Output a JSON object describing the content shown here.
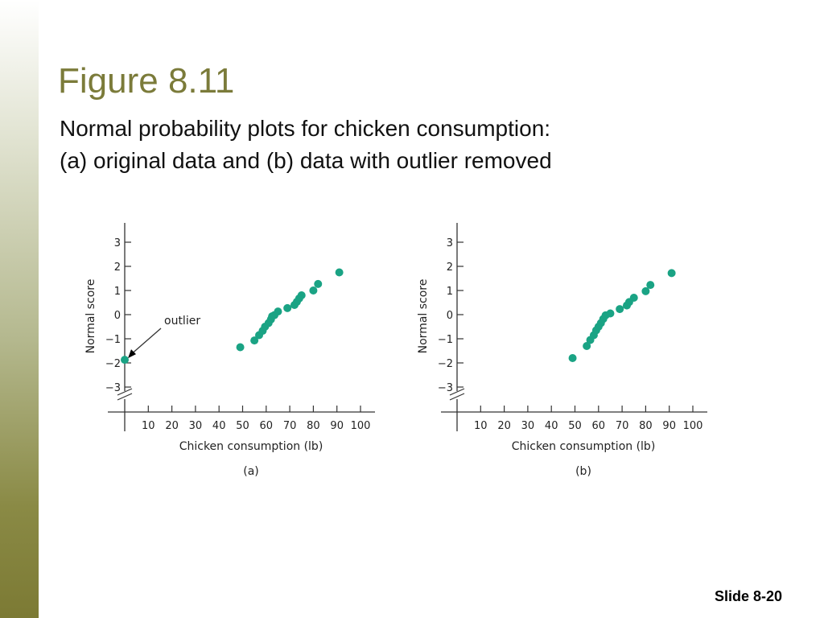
{
  "slide": {
    "title": "Figure 8.11",
    "subtitle_line1": "Normal probability plots for chicken consumption:",
    "subtitle_line2": "(a) original data and (b) data with outlier removed",
    "footer": "Slide 8-20"
  },
  "colors": {
    "accent": "#7b7b3a",
    "point": "#1aa384",
    "axis": "#333333"
  },
  "chart_data": [
    {
      "type": "scatter",
      "panel_label": "(a)",
      "xlabel": "Chicken consumption (lb)",
      "ylabel": "Normal score",
      "xlim": [
        0,
        100
      ],
      "ylim": [
        -3,
        3
      ],
      "x_ticks": [
        10,
        20,
        30,
        40,
        50,
        60,
        70,
        80,
        90,
        100
      ],
      "y_ticks": [
        3,
        2,
        1,
        0,
        -1,
        -2,
        -3
      ],
      "y_tick_labels": [
        "3",
        "2",
        "1",
        "0",
        "−1",
        "−2",
        "−3"
      ],
      "axis_break": true,
      "annotation": {
        "text": "outlier",
        "points_to": {
          "x": 0,
          "y": -1.87
        }
      },
      "points": [
        {
          "x": 0,
          "y": -1.87
        },
        {
          "x": 49,
          "y": -1.35
        },
        {
          "x": 55,
          "y": -1.07
        },
        {
          "x": 57,
          "y": -0.85
        },
        {
          "x": 58.5,
          "y": -0.67
        },
        {
          "x": 59.5,
          "y": -0.5
        },
        {
          "x": 61,
          "y": -0.35
        },
        {
          "x": 62,
          "y": -0.2
        },
        {
          "x": 62.5,
          "y": -0.07
        },
        {
          "x": 63.5,
          "y": -0.02
        },
        {
          "x": 65,
          "y": 0.13
        },
        {
          "x": 69,
          "y": 0.27
        },
        {
          "x": 72,
          "y": 0.4
        },
        {
          "x": 73,
          "y": 0.53
        },
        {
          "x": 74,
          "y": 0.67
        },
        {
          "x": 75,
          "y": 0.8
        },
        {
          "x": 80,
          "y": 1.0
        },
        {
          "x": 82,
          "y": 1.27
        },
        {
          "x": 91,
          "y": 1.75
        }
      ]
    },
    {
      "type": "scatter",
      "panel_label": "(b)",
      "xlabel": "Chicken consumption (lb)",
      "ylabel": "Normal score",
      "xlim": [
        0,
        100
      ],
      "ylim": [
        -3,
        3
      ],
      "x_ticks": [
        10,
        20,
        30,
        40,
        50,
        60,
        70,
        80,
        90,
        100
      ],
      "y_ticks": [
        3,
        2,
        1,
        0,
        -1,
        -2,
        -3
      ],
      "y_tick_labels": [
        "3",
        "2",
        "1",
        "0",
        "−1",
        "−2",
        "−3"
      ],
      "axis_break": true,
      "points": [
        {
          "x": 49,
          "y": -1.8
        },
        {
          "x": 55,
          "y": -1.3
        },
        {
          "x": 56.5,
          "y": -1.05
        },
        {
          "x": 58,
          "y": -0.85
        },
        {
          "x": 59,
          "y": -0.65
        },
        {
          "x": 60,
          "y": -0.5
        },
        {
          "x": 61,
          "y": -0.35
        },
        {
          "x": 62,
          "y": -0.18
        },
        {
          "x": 63,
          "y": -0.03
        },
        {
          "x": 65,
          "y": 0.05
        },
        {
          "x": 69,
          "y": 0.23
        },
        {
          "x": 72,
          "y": 0.38
        },
        {
          "x": 73,
          "y": 0.52
        },
        {
          "x": 75,
          "y": 0.7
        },
        {
          "x": 80,
          "y": 0.97
        },
        {
          "x": 82,
          "y": 1.23
        },
        {
          "x": 91,
          "y": 1.72
        }
      ]
    }
  ]
}
